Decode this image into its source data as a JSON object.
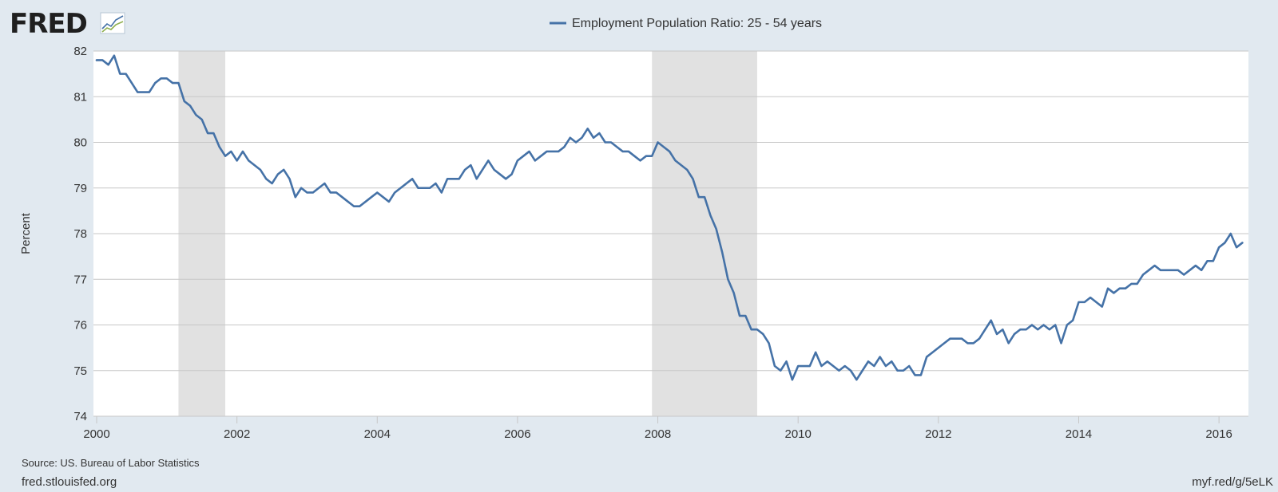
{
  "branding": {
    "logo_text": "FRED",
    "source_text": "Source: US. Bureau of Labor Statistics",
    "site_link": "fred.stlouisfed.org",
    "short_link": "myf.red/g/5eLK"
  },
  "colors": {
    "series_line": "#4572a7",
    "recession_band": "#e1e1e1",
    "grid": "#c7c7c7",
    "plot_background": "#ffffff",
    "page_background": "#e1e9f0"
  },
  "chart_data": {
    "type": "line",
    "legend_position": "top-center",
    "grid": true,
    "xlabel": "",
    "ylabel": "Percent",
    "ylim": [
      74,
      82
    ],
    "xlim": [
      2000.0,
      2016.42
    ],
    "x_ticks": [
      "2000",
      "2002",
      "2004",
      "2006",
      "2008",
      "2010",
      "2012",
      "2014",
      "2016"
    ],
    "y_ticks": [
      "74",
      "75",
      "76",
      "77",
      "78",
      "79",
      "80",
      "81",
      "82"
    ],
    "recessions": [
      {
        "start": "2001-03",
        "end": "2001-11"
      },
      {
        "start": "2007-12",
        "end": "2009-06"
      }
    ],
    "series": [
      {
        "name": "Employment Population Ratio: 25 - 54 years",
        "start_date": "2000-01",
        "frequency": "monthly",
        "values": [
          81.8,
          81.8,
          81.7,
          81.9,
          81.5,
          81.5,
          81.3,
          81.1,
          81.1,
          81.1,
          81.3,
          81.4,
          81.4,
          81.3,
          81.3,
          80.9,
          80.8,
          80.6,
          80.5,
          80.2,
          80.2,
          79.9,
          79.7,
          79.8,
          79.6,
          79.8,
          79.6,
          79.5,
          79.4,
          79.2,
          79.1,
          79.3,
          79.4,
          79.2,
          78.8,
          79.0,
          78.9,
          78.9,
          79.0,
          79.1,
          78.9,
          78.9,
          78.8,
          78.7,
          78.6,
          78.6,
          78.7,
          78.8,
          78.9,
          78.8,
          78.7,
          78.9,
          79.0,
          79.1,
          79.2,
          79.0,
          79.0,
          79.0,
          79.1,
          78.9,
          79.2,
          79.2,
          79.2,
          79.4,
          79.5,
          79.2,
          79.4,
          79.6,
          79.4,
          79.3,
          79.2,
          79.3,
          79.6,
          79.7,
          79.8,
          79.6,
          79.7,
          79.8,
          79.8,
          79.8,
          79.9,
          80.1,
          80.0,
          80.1,
          80.3,
          80.1,
          80.2,
          80.0,
          80.0,
          79.9,
          79.8,
          79.8,
          79.7,
          79.6,
          79.7,
          79.7,
          80.0,
          79.9,
          79.8,
          79.6,
          79.5,
          79.4,
          79.2,
          78.8,
          78.8,
          78.4,
          78.1,
          77.6,
          77.0,
          76.7,
          76.2,
          76.2,
          75.9,
          75.9,
          75.8,
          75.6,
          75.1,
          75.0,
          75.2,
          74.8,
          75.1,
          75.1,
          75.1,
          75.4,
          75.1,
          75.2,
          75.1,
          75.0,
          75.1,
          75.0,
          74.8,
          75.0,
          75.2,
          75.1,
          75.3,
          75.1,
          75.2,
          75.0,
          75.0,
          75.1,
          74.9,
          74.9,
          75.3,
          75.4,
          75.5,
          75.6,
          75.7,
          75.7,
          75.7,
          75.6,
          75.6,
          75.7,
          75.9,
          76.1,
          75.8,
          75.9,
          75.6,
          75.8,
          75.9,
          75.9,
          76.0,
          75.9,
          76.0,
          75.9,
          76.0,
          75.6,
          76.0,
          76.1,
          76.5,
          76.5,
          76.6,
          76.5,
          76.4,
          76.8,
          76.7,
          76.8,
          76.8,
          76.9,
          76.9,
          77.1,
          77.2,
          77.3,
          77.2,
          77.2,
          77.2,
          77.2,
          77.1,
          77.2,
          77.3,
          77.2,
          77.4,
          77.4,
          77.7,
          77.8,
          78.0,
          77.7,
          77.8
        ]
      }
    ]
  }
}
